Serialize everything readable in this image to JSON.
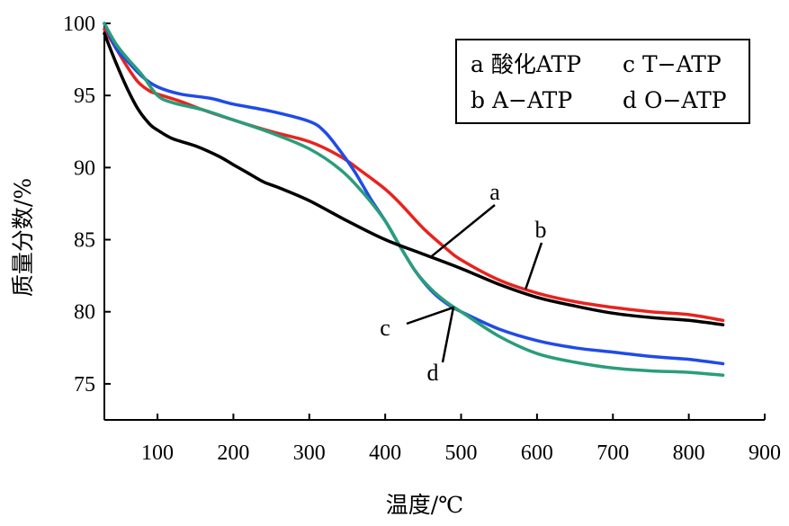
{
  "chart_data": {
    "type": "line",
    "title": "",
    "xlabel": "温度/℃",
    "ylabel": "质量分数/%",
    "xlim": [
      30,
      900
    ],
    "ylim": [
      72.5,
      100
    ],
    "xticks": [
      100,
      200,
      300,
      400,
      500,
      600,
      700,
      800,
      900
    ],
    "yticks": [
      75,
      80,
      85,
      90,
      95,
      100
    ],
    "grid": false,
    "legend_position": "top-right",
    "legend": [
      "a 酸化ATP",
      "c T−ATP",
      "b A−ATP",
      "d O−ATP"
    ],
    "annotations": [
      {
        "label": "a",
        "points_to_x": 460
      },
      {
        "label": "b",
        "points_to_x": 585
      },
      {
        "label": "c",
        "points_to_x": 490
      },
      {
        "label": "d",
        "points_to_x": 490
      }
    ],
    "series": [
      {
        "name": "a",
        "color": "#000000",
        "x": [
          30,
          45,
          60,
          75,
          90,
          100,
          120,
          150,
          180,
          200,
          220,
          240,
          260,
          300,
          350,
          400,
          450,
          500,
          550,
          600,
          650,
          700,
          750,
          800,
          845
        ],
        "y": [
          99.3,
          97.3,
          95.5,
          94.0,
          93.0,
          92.6,
          92.0,
          91.5,
          90.8,
          90.2,
          89.6,
          89.0,
          88.6,
          87.7,
          86.3,
          85.0,
          84.0,
          83.0,
          81.9,
          81.0,
          80.4,
          79.9,
          79.6,
          79.4,
          79.1
        ]
      },
      {
        "name": "b",
        "color": "#e8231e",
        "x": [
          30,
          45,
          60,
          75,
          90,
          100,
          130,
          160,
          200,
          250,
          300,
          340,
          370,
          400,
          420,
          450,
          480,
          500,
          550,
          600,
          650,
          700,
          750,
          800,
          845
        ],
        "y": [
          99.6,
          98.3,
          97.0,
          95.9,
          95.3,
          95.1,
          94.6,
          94.0,
          93.3,
          92.5,
          91.8,
          90.8,
          89.7,
          88.5,
          87.5,
          85.8,
          84.4,
          83.6,
          82.2,
          81.3,
          80.7,
          80.3,
          80.0,
          79.8,
          79.4
        ]
      },
      {
        "name": "c",
        "color": "#1f4be8",
        "x": [
          30,
          45,
          60,
          80,
          100,
          130,
          170,
          200,
          250,
          300,
          320,
          340,
          360,
          380,
          400,
          420,
          440,
          460,
          480,
          500,
          550,
          600,
          650,
          700,
          750,
          800,
          845
        ],
        "y": [
          100.0,
          98.3,
          97.4,
          96.3,
          95.6,
          95.1,
          94.8,
          94.4,
          93.9,
          93.2,
          92.5,
          91.2,
          89.7,
          87.9,
          86.3,
          84.5,
          82.8,
          81.5,
          80.6,
          80.0,
          78.8,
          78.0,
          77.5,
          77.2,
          76.9,
          76.7,
          76.4
        ]
      },
      {
        "name": "d",
        "color": "#2a9d7a",
        "x": [
          30,
          45,
          60,
          80,
          100,
          120,
          160,
          200,
          250,
          300,
          340,
          370,
          400,
          420,
          440,
          460,
          480,
          500,
          550,
          600,
          650,
          700,
          750,
          800,
          845
        ],
        "y": [
          100.0,
          98.6,
          97.6,
          96.4,
          95.0,
          94.5,
          94.0,
          93.3,
          92.4,
          91.3,
          89.9,
          88.3,
          86.3,
          84.5,
          82.8,
          81.6,
          80.7,
          80.0,
          78.3,
          77.1,
          76.5,
          76.1,
          75.9,
          75.8,
          75.6
        ]
      }
    ]
  }
}
